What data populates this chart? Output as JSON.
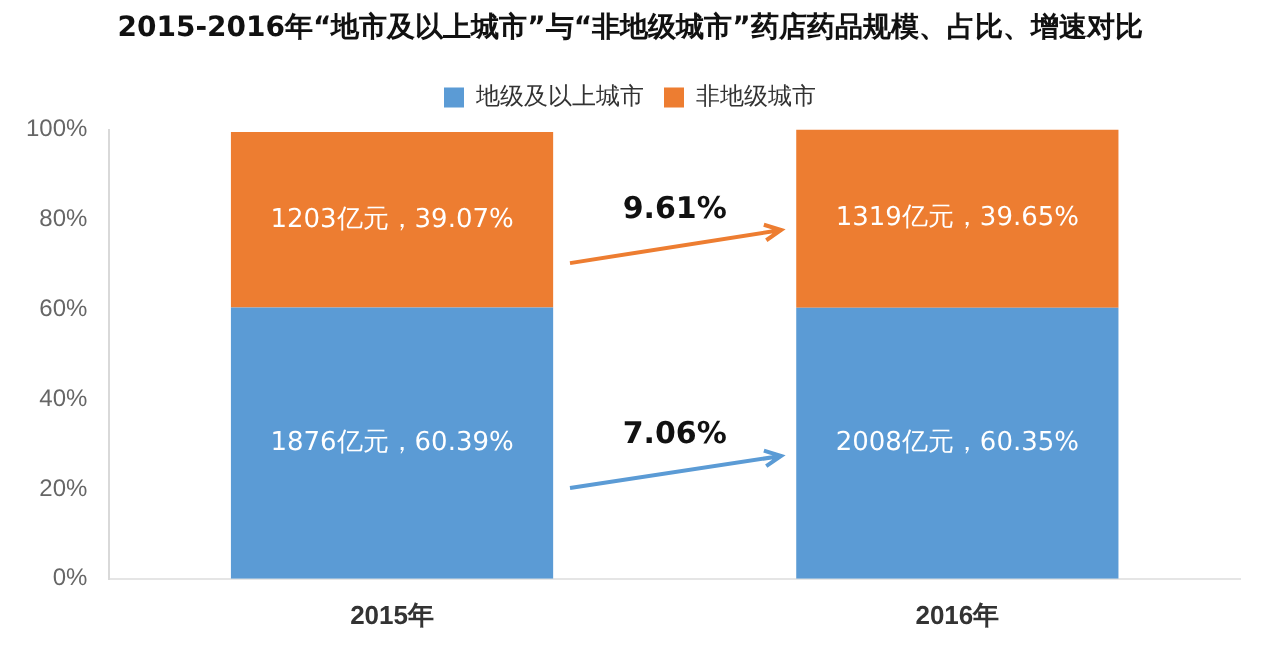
{
  "chart_data": {
    "type": "bar",
    "stacked": true,
    "title": "2015-2016年“地市及以上城市”与“非地级城市”药店药品规模、占比、增速对比",
    "categories": [
      "2015年",
      "2016年"
    ],
    "series": [
      {
        "name": "地级及以上城市",
        "color": "#5b9bd5",
        "values": [
          60.39,
          60.35
        ],
        "value_labels": [
          "1876亿元，60.39%",
          "2008亿元，60.35%"
        ]
      },
      {
        "name": "非地级城市",
        "color": "#ed7d31",
        "values": [
          39.07,
          39.65
        ],
        "value_labels": [
          "1203亿元，39.07%",
          "1319亿元，39.65%"
        ]
      }
    ],
    "ylim": [
      0,
      100
    ],
    "yticks": [
      {
        "value": 0,
        "label": "0%"
      },
      {
        "value": 20,
        "label": "20%"
      },
      {
        "value": 40,
        "label": "40%"
      },
      {
        "value": 60,
        "label": "60%"
      },
      {
        "value": 80,
        "label": "80%"
      },
      {
        "value": 100,
        "label": "100%"
      }
    ],
    "grid": false,
    "legend": "top",
    "annotations": [
      "9.61%",
      "7.06%"
    ]
  }
}
